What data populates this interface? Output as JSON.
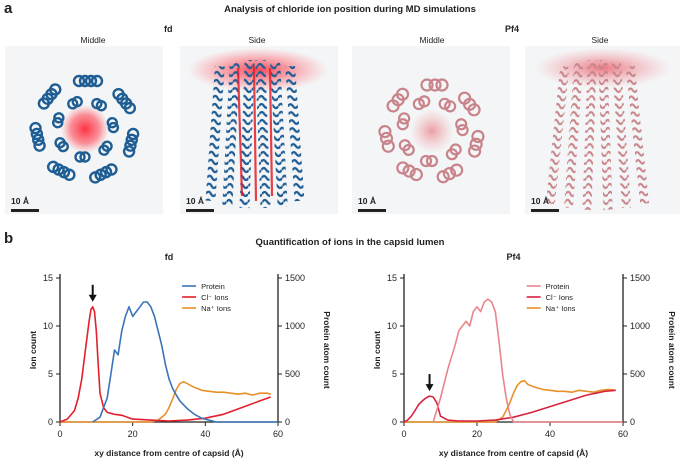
{
  "panel_a": {
    "letter": "a",
    "title": "Analysis of chloride ion position during MD simulations",
    "groups": [
      "fd",
      "Pf4"
    ],
    "views": [
      "Middle",
      "Side",
      "Middle",
      "Side"
    ],
    "scale_bar": "10 Å"
  },
  "panel_b": {
    "letter": "b",
    "title": "Quantification of ions in the capsid lumen"
  },
  "colors": {
    "fd_protein": "#3a74b9",
    "cl": "#e3202c",
    "na": "#e8912a",
    "pf4_protein": "#e8868a",
    "pf4_cl": "#d6233e",
    "fd_helix": "#1f5e94",
    "pf4_helix": "#c8848a"
  },
  "chart_data": [
    {
      "type": "line",
      "title": "fd",
      "xlabel": "xy distance from centre of capsid (Å)",
      "ylabel": "Ion count",
      "y2label": "Protein atom count",
      "xlim": [
        0,
        60
      ],
      "ylim": [
        0,
        15
      ],
      "y2lim": [
        0,
        1500
      ],
      "xticks": [
        0,
        20,
        40,
        60
      ],
      "yticks": [
        0,
        5,
        10,
        15
      ],
      "y2ticks": [
        0,
        500,
        1000,
        1500
      ],
      "legend": [
        "Protein",
        "Cl⁻ Ions",
        "Na⁺ Ions"
      ],
      "annotation": {
        "marker": "arrow",
        "x": 9
      },
      "series": [
        {
          "name": "Protein",
          "axis": "right",
          "x": [
            9,
            11,
            13,
            14,
            15,
            16,
            17,
            18,
            19,
            20,
            21,
            22,
            23,
            24,
            25,
            26,
            27,
            28,
            29,
            30,
            31,
            32,
            33,
            35,
            37,
            39,
            41,
            43,
            60
          ],
          "y": [
            0,
            50,
            250,
            500,
            750,
            700,
            950,
            1100,
            1200,
            1100,
            1150,
            1200,
            1250,
            1250,
            1200,
            1100,
            950,
            800,
            600,
            450,
            350,
            280,
            220,
            140,
            80,
            40,
            20,
            0,
            0
          ]
        },
        {
          "name": "Cl⁻ Ions",
          "axis": "left",
          "x": [
            0,
            2,
            4,
            5,
            6,
            7,
            8,
            8.5,
            9,
            9.5,
            10,
            10.5,
            11,
            12,
            13,
            15,
            17,
            20,
            25,
            30,
            35,
            40,
            45,
            50,
            55,
            58
          ],
          "y": [
            0,
            0.3,
            1.2,
            2.5,
            4.5,
            7.5,
            10.5,
            11.7,
            12,
            11.5,
            9.5,
            6,
            3,
            1.5,
            1,
            0.8,
            0.7,
            0.3,
            0.2,
            0.1,
            0.2,
            0.4,
            0.8,
            1.5,
            2.2,
            2.6
          ]
        },
        {
          "name": "Na⁺ Ions",
          "axis": "left",
          "x": [
            0,
            10,
            20,
            25,
            27,
            29,
            30,
            31,
            32,
            33,
            34,
            35,
            37,
            39,
            41,
            43,
            45,
            47,
            49,
            51,
            53,
            55,
            57,
            58
          ],
          "y": [
            0,
            0,
            0,
            0,
            0.2,
            0.8,
            1.5,
            2.4,
            3.4,
            4,
            4.2,
            4,
            3.6,
            3.3,
            3.2,
            3.1,
            3.1,
            3,
            2.9,
            3,
            2.8,
            3,
            3,
            2.9
          ]
        }
      ]
    },
    {
      "type": "line",
      "title": "Pf4",
      "xlabel": "xy distance from centre of capsid (Å)",
      "ylabel": "Ion count",
      "y2label": "Protein atom count",
      "xlim": [
        0,
        60
      ],
      "ylim": [
        0,
        15
      ],
      "y2lim": [
        0,
        1500
      ],
      "xticks": [
        0,
        20,
        40,
        60
      ],
      "yticks": [
        0,
        5,
        10,
        15
      ],
      "y2ticks": [
        0,
        500,
        1000,
        1500
      ],
      "legend": [
        "Protein",
        "Cl⁻ Ions",
        "Na⁺ Ions"
      ],
      "annotation": {
        "marker": "arrow",
        "x": 7
      },
      "series": [
        {
          "name": "Protein",
          "axis": "right",
          "x": [
            8,
            10,
            12,
            14,
            15,
            16,
            17,
            18,
            19,
            20,
            21,
            22,
            23,
            24,
            25,
            26,
            27,
            28,
            29,
            30,
            60
          ],
          "y": [
            0,
            250,
            550,
            800,
            950,
            1000,
            1050,
            1000,
            1150,
            1200,
            1150,
            1250,
            1280,
            1250,
            1150,
            850,
            500,
            250,
            80,
            0,
            0
          ]
        },
        {
          "name": "Cl⁻ Ions",
          "axis": "left",
          "x": [
            0,
            1,
            2,
            3,
            4,
            5,
            6,
            7,
            8,
            9,
            10,
            12,
            15,
            20,
            25,
            30,
            35,
            40,
            45,
            50,
            55,
            58
          ],
          "y": [
            0,
            0.2,
            0.6,
            1.2,
            1.8,
            2.2,
            2.5,
            2.7,
            2.6,
            2,
            0.6,
            0.2,
            0.1,
            0.1,
            0.2,
            0.5,
            1,
            1.6,
            2.2,
            2.8,
            3.2,
            3.3
          ]
        },
        {
          "name": "Na⁺ Ions",
          "axis": "left",
          "x": [
            0,
            10,
            20,
            25,
            27,
            28,
            29,
            30,
            31,
            32,
            33,
            34,
            36,
            38,
            40,
            42,
            44,
            46,
            48,
            50,
            52,
            54,
            56,
            58
          ],
          "y": [
            0,
            0,
            0,
            0,
            0.5,
            1.2,
            2,
            3,
            3.8,
            4.2,
            4.3,
            3.9,
            3.6,
            3.4,
            3.3,
            3.2,
            3.2,
            3.1,
            3.3,
            3.2,
            3.1,
            3.3,
            3.4,
            3.3
          ]
        }
      ]
    }
  ]
}
